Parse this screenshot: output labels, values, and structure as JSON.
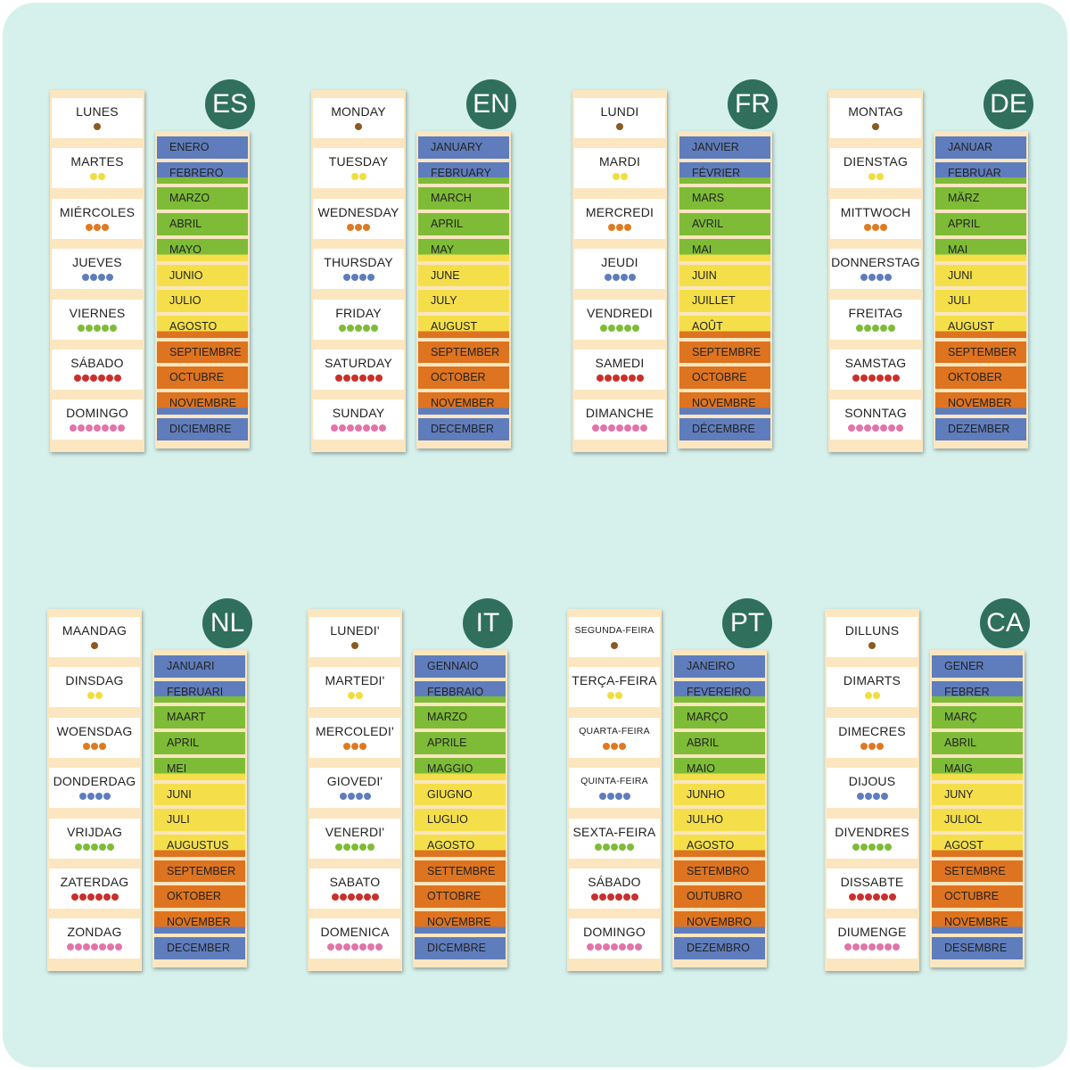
{
  "colors": {
    "background": "#d6f1ec",
    "badge": "#2f6f5c",
    "winter": "#5f7dbd",
    "spring": "#7ebc37",
    "summer": "#f4df4a",
    "autumn": "#de7420",
    "dot_day1": "#8a5a22",
    "dot_day2": "#f0de3e",
    "dot_day3": "#df7a21",
    "dot_day4": "#5f7dbd",
    "dot_day5": "#7ebc37",
    "dot_day6": "#c9302c",
    "dot_day7": "#e274aa"
  },
  "sets": [
    {
      "code": "ES",
      "days": [
        "LUNES",
        "MARTES",
        "MIÉRCOLES",
        "JUEVES",
        "VIERNES",
        "SÁBADO",
        "DOMINGO"
      ],
      "months": [
        "ENERO",
        "FEBRERO",
        "MARZO",
        "ABRIL",
        "MAYO",
        "JUNIO",
        "JULIO",
        "AGOSTO",
        "SEPTIEMBRE",
        "OCTUBRE",
        "NOVIEMBRE",
        "DICIEMBRE"
      ]
    },
    {
      "code": "EN",
      "days": [
        "MONDAY",
        "TUESDAY",
        "WEDNESDAY",
        "THURSDAY",
        "FRIDAY",
        "SATURDAY",
        "SUNDAY"
      ],
      "months": [
        "JANUARY",
        "FEBRUARY",
        "MARCH",
        "APRIL",
        "MAY",
        "JUNE",
        "JULY",
        "AUGUST",
        "SEPTEMBER",
        "OCTOBER",
        "NOVEMBER",
        "DECEMBER"
      ]
    },
    {
      "code": "FR",
      "days": [
        "LUNDI",
        "MARDI",
        "MERCREDI",
        "JEUDI",
        "VENDREDI",
        "SAMEDI",
        "DIMANCHE"
      ],
      "months": [
        "JANVIER",
        "FÉVRIER",
        "MARS",
        "AVRIL",
        "MAI",
        "JUIN",
        "JUILLET",
        "AOÛT",
        "SEPTEMBRE",
        "OCTOBRE",
        "NOVEMBRE",
        "DÉCEMBRE"
      ]
    },
    {
      "code": "DE",
      "days": [
        "MONTAG",
        "DIENSTAG",
        "MITTWOCH",
        "DONNERSTAG",
        "FREITAG",
        "SAMSTAG",
        "SONNTAG"
      ],
      "months": [
        "JANUAR",
        "FEBRUAR",
        "MÄRZ",
        "APRIL",
        "MAI",
        "JUNI",
        "JULI",
        "AUGUST",
        "SEPTEMBER",
        "OKTOBER",
        "NOVEMBER",
        "DEZEMBER"
      ]
    },
    {
      "code": "NL",
      "days": [
        "MAANDAG",
        "DINSDAG",
        "WOENSDAG",
        "DONDERDAG",
        "VRIJDAG",
        "ZATERDAG",
        "ZONDAG"
      ],
      "months": [
        "JANUARI",
        "FEBRUARI",
        "MAART",
        "APRIL",
        "MEI",
        "JUNI",
        "JULI",
        "AUGUSTUS",
        "SEPTEMBER",
        "OKTOBER",
        "NOVEMBER",
        "DECEMBER"
      ]
    },
    {
      "code": "IT",
      "days": [
        "LUNEDI'",
        "MARTEDI'",
        "MERCOLEDI'",
        "GIOVEDI'",
        "VENERDI'",
        "SABATO",
        "DOMENICA"
      ],
      "months": [
        "GENNAIO",
        "FEBBRAIO",
        "MARZO",
        "APRILE",
        "MAGGIO",
        "GIUGNO",
        "LUGLIO",
        "AGOSTO",
        "SETTEMBRE",
        "OTTOBRE",
        "NOVEMBRE",
        "DICEMBRE"
      ]
    },
    {
      "code": "PT",
      "days": [
        "SEGUNDA-FEIRA",
        "TERÇA-FEIRA",
        "QUARTA-FEIRA",
        "QUINTA-FEIRA",
        "SEXTA-FEIRA",
        "SÁBADO",
        "DOMINGO"
      ],
      "months": [
        "JANEIRO",
        "FEVEREIRO",
        "MARÇO",
        "ABRIL",
        "MAIO",
        "JUNHO",
        "JULHO",
        "AGOSTO",
        "SETEMBRO",
        "OUTUBRO",
        "NOVEMBRO",
        "DEZEMBRO"
      ]
    },
    {
      "code": "CA",
      "days": [
        "DILLUNS",
        "DIMARTS",
        "DIMECRES",
        "DIJOUS",
        "DIVENDRES",
        "DISSABTE",
        "DIUMENGE"
      ],
      "months": [
        "GENER",
        "FEBRER",
        "MARÇ",
        "ABRIL",
        "MAIG",
        "JUNY",
        "JULIOL",
        "AGOST",
        "SETEMBRE",
        "OCTUBRE",
        "NOVEMBRE",
        "DESEMBRE"
      ]
    }
  ]
}
